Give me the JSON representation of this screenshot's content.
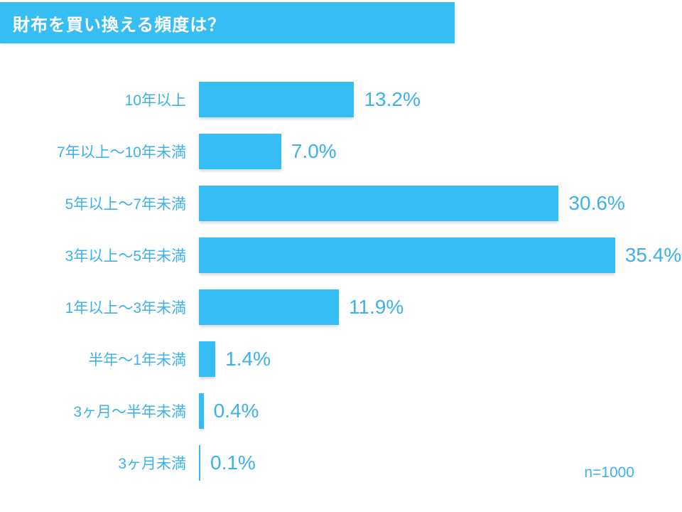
{
  "title": {
    "text": "財布を買い換える頻度は？"
  },
  "footnote": "n=1000",
  "colors": {
    "bar": "#36bdf4",
    "banner": "#36bdf4",
    "text": "#3db2ea",
    "title_text": "#ffffff",
    "background": "#ffffff"
  },
  "chart_data": {
    "type": "bar",
    "orientation": "horizontal",
    "title": "財布を買い換える頻度は？",
    "categories": [
      "10年以上",
      "7年以上～10年未満",
      "5年以上～7年未満",
      "3年以上～5年未満",
      "1年以上～3年未満",
      "半年～1年未満",
      "3ヶ月～半年未満",
      "3ヶ月未満"
    ],
    "values": [
      13.2,
      7.0,
      30.6,
      35.4,
      11.9,
      1.4,
      0.4,
      0.1
    ],
    "value_labels": [
      "13.2%",
      "7.0%",
      "30.6%",
      "35.4%",
      "11.9%",
      "1.4%",
      "0.4%",
      "0.1%"
    ],
    "xlabel": "",
    "ylabel": "",
    "xlim": [
      0,
      40
    ],
    "grid": false,
    "legend": false,
    "sample_size": "n=1000"
  }
}
